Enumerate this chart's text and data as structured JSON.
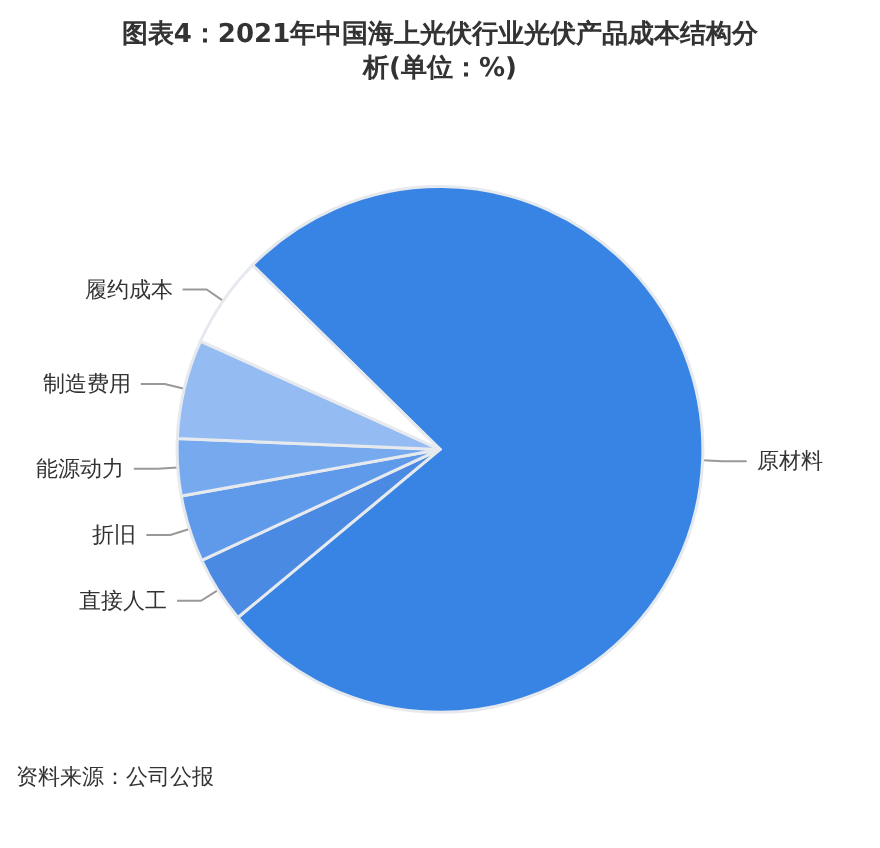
{
  "chart_data": {
    "type": "pie",
    "title": "图表4：2021年中国海上光伏行业光伏产品成本结构分析(单位：%)",
    "categories": [
      "原材料",
      "直接人工",
      "折旧",
      "能源动力",
      "制造费用",
      "履约成本"
    ],
    "values": [
      76.6,
      4.1,
      4.1,
      3.5,
      6.1,
      5.6
    ],
    "colors": [
      "#3784e4",
      "#4a8ae2",
      "#5f9aea",
      "#76a9ee",
      "#94bcf2",
      "#ffffff"
    ],
    "legend": false,
    "annotations": [
      "资料来源：公司公报"
    ]
  }
}
